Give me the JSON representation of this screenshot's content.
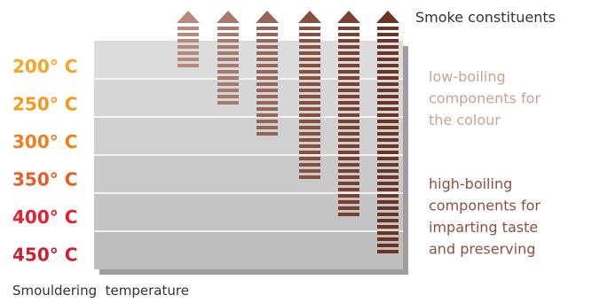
{
  "title": "Smoke constituents",
  "x_caption": "Smouldering  temperature",
  "temperatures": [
    {
      "label": "200° C",
      "color": "#f5a623"
    },
    {
      "label": "250° C",
      "color": "#f39a1f"
    },
    {
      "label": "300° C",
      "color": "#ee8020"
    },
    {
      "label": "350° C",
      "color": "#e85e28"
    },
    {
      "label": "400° C",
      "color": "#e2202f"
    },
    {
      "label": "450° C",
      "color": "#c92330"
    }
  ],
  "arrow_colors": [
    "#b78a7d",
    "#a8796d",
    "#98655a",
    "#87503f",
    "#7a4030",
    "#6c3424"
  ],
  "annotations": {
    "low": {
      "lines": [
        "low-boiling",
        "components for",
        "the colour"
      ],
      "color": "#c4a49a"
    },
    "high": {
      "lines": [
        "high-boiling",
        "components for",
        "imparting taste",
        "and preserving"
      ],
      "color": "#8e4f42"
    }
  },
  "band_colors": [
    "#dcdcdc",
    "#d6d6d6",
    "#d0d0d0",
    "#cacaca",
    "#c4c4c4",
    "#bebebe"
  ],
  "shadow_color": "#9e9e9e"
}
